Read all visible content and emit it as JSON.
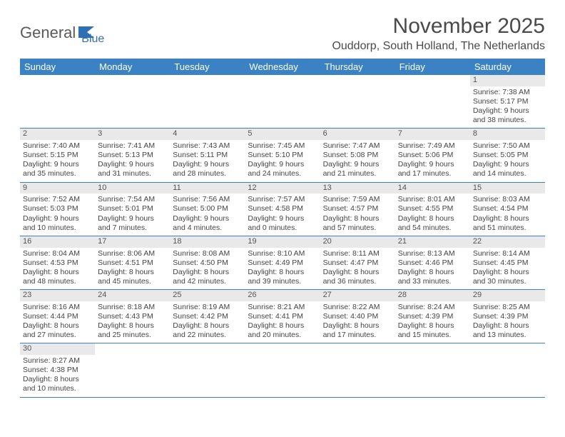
{
  "logo": {
    "text1": "General",
    "text2": "Blue"
  },
  "title": "November 2025",
  "location": "Ouddorp, South Holland, The Netherlands",
  "colors": {
    "header_bg": "#3a82c4",
    "header_text": "#ffffff",
    "daynum_bg": "#e9e9e9",
    "border": "#3a82c4",
    "text": "#444444",
    "logo_gray": "#5a5a5a",
    "logo_blue": "#2f6fb3"
  },
  "day_names": [
    "Sunday",
    "Monday",
    "Tuesday",
    "Wednesday",
    "Thursday",
    "Friday",
    "Saturday"
  ],
  "weeks": [
    [
      null,
      null,
      null,
      null,
      null,
      null,
      {
        "n": "1",
        "sr": "Sunrise: 7:38 AM",
        "ss": "Sunset: 5:17 PM",
        "dl": "Daylight: 9 hours and 38 minutes."
      }
    ],
    [
      {
        "n": "2",
        "sr": "Sunrise: 7:40 AM",
        "ss": "Sunset: 5:15 PM",
        "dl": "Daylight: 9 hours and 35 minutes."
      },
      {
        "n": "3",
        "sr": "Sunrise: 7:41 AM",
        "ss": "Sunset: 5:13 PM",
        "dl": "Daylight: 9 hours and 31 minutes."
      },
      {
        "n": "4",
        "sr": "Sunrise: 7:43 AM",
        "ss": "Sunset: 5:11 PM",
        "dl": "Daylight: 9 hours and 28 minutes."
      },
      {
        "n": "5",
        "sr": "Sunrise: 7:45 AM",
        "ss": "Sunset: 5:10 PM",
        "dl": "Daylight: 9 hours and 24 minutes."
      },
      {
        "n": "6",
        "sr": "Sunrise: 7:47 AM",
        "ss": "Sunset: 5:08 PM",
        "dl": "Daylight: 9 hours and 21 minutes."
      },
      {
        "n": "7",
        "sr": "Sunrise: 7:49 AM",
        "ss": "Sunset: 5:06 PM",
        "dl": "Daylight: 9 hours and 17 minutes."
      },
      {
        "n": "8",
        "sr": "Sunrise: 7:50 AM",
        "ss": "Sunset: 5:05 PM",
        "dl": "Daylight: 9 hours and 14 minutes."
      }
    ],
    [
      {
        "n": "9",
        "sr": "Sunrise: 7:52 AM",
        "ss": "Sunset: 5:03 PM",
        "dl": "Daylight: 9 hours and 10 minutes."
      },
      {
        "n": "10",
        "sr": "Sunrise: 7:54 AM",
        "ss": "Sunset: 5:01 PM",
        "dl": "Daylight: 9 hours and 7 minutes."
      },
      {
        "n": "11",
        "sr": "Sunrise: 7:56 AM",
        "ss": "Sunset: 5:00 PM",
        "dl": "Daylight: 9 hours and 4 minutes."
      },
      {
        "n": "12",
        "sr": "Sunrise: 7:57 AM",
        "ss": "Sunset: 4:58 PM",
        "dl": "Daylight: 9 hours and 0 minutes."
      },
      {
        "n": "13",
        "sr": "Sunrise: 7:59 AM",
        "ss": "Sunset: 4:57 PM",
        "dl": "Daylight: 8 hours and 57 minutes."
      },
      {
        "n": "14",
        "sr": "Sunrise: 8:01 AM",
        "ss": "Sunset: 4:55 PM",
        "dl": "Daylight: 8 hours and 54 minutes."
      },
      {
        "n": "15",
        "sr": "Sunrise: 8:03 AM",
        "ss": "Sunset: 4:54 PM",
        "dl": "Daylight: 8 hours and 51 minutes."
      }
    ],
    [
      {
        "n": "16",
        "sr": "Sunrise: 8:04 AM",
        "ss": "Sunset: 4:53 PM",
        "dl": "Daylight: 8 hours and 48 minutes."
      },
      {
        "n": "17",
        "sr": "Sunrise: 8:06 AM",
        "ss": "Sunset: 4:51 PM",
        "dl": "Daylight: 8 hours and 45 minutes."
      },
      {
        "n": "18",
        "sr": "Sunrise: 8:08 AM",
        "ss": "Sunset: 4:50 PM",
        "dl": "Daylight: 8 hours and 42 minutes."
      },
      {
        "n": "19",
        "sr": "Sunrise: 8:10 AM",
        "ss": "Sunset: 4:49 PM",
        "dl": "Daylight: 8 hours and 39 minutes."
      },
      {
        "n": "20",
        "sr": "Sunrise: 8:11 AM",
        "ss": "Sunset: 4:47 PM",
        "dl": "Daylight: 8 hours and 36 minutes."
      },
      {
        "n": "21",
        "sr": "Sunrise: 8:13 AM",
        "ss": "Sunset: 4:46 PM",
        "dl": "Daylight: 8 hours and 33 minutes."
      },
      {
        "n": "22",
        "sr": "Sunrise: 8:14 AM",
        "ss": "Sunset: 4:45 PM",
        "dl": "Daylight: 8 hours and 30 minutes."
      }
    ],
    [
      {
        "n": "23",
        "sr": "Sunrise: 8:16 AM",
        "ss": "Sunset: 4:44 PM",
        "dl": "Daylight: 8 hours and 27 minutes."
      },
      {
        "n": "24",
        "sr": "Sunrise: 8:18 AM",
        "ss": "Sunset: 4:43 PM",
        "dl": "Daylight: 8 hours and 25 minutes."
      },
      {
        "n": "25",
        "sr": "Sunrise: 8:19 AM",
        "ss": "Sunset: 4:42 PM",
        "dl": "Daylight: 8 hours and 22 minutes."
      },
      {
        "n": "26",
        "sr": "Sunrise: 8:21 AM",
        "ss": "Sunset: 4:41 PM",
        "dl": "Daylight: 8 hours and 20 minutes."
      },
      {
        "n": "27",
        "sr": "Sunrise: 8:22 AM",
        "ss": "Sunset: 4:40 PM",
        "dl": "Daylight: 8 hours and 17 minutes."
      },
      {
        "n": "28",
        "sr": "Sunrise: 8:24 AM",
        "ss": "Sunset: 4:39 PM",
        "dl": "Daylight: 8 hours and 15 minutes."
      },
      {
        "n": "29",
        "sr": "Sunrise: 8:25 AM",
        "ss": "Sunset: 4:39 PM",
        "dl": "Daylight: 8 hours and 13 minutes."
      }
    ],
    [
      {
        "n": "30",
        "sr": "Sunrise: 8:27 AM",
        "ss": "Sunset: 4:38 PM",
        "dl": "Daylight: 8 hours and 10 minutes."
      },
      null,
      null,
      null,
      null,
      null,
      null
    ]
  ]
}
